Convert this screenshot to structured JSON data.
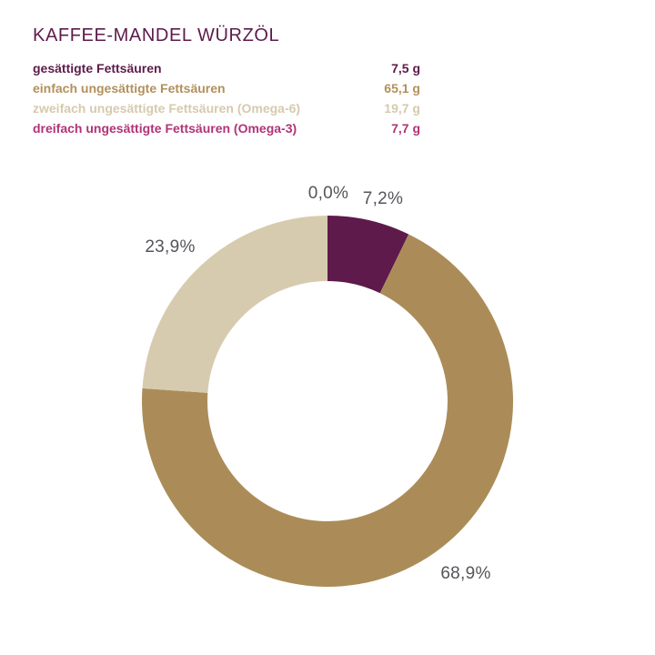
{
  "page": {
    "background": "#ffffff"
  },
  "header": {
    "title": "KAFFEE-MANDEL WÜRZÖL",
    "title_color": "#5d1b4b"
  },
  "legend": {
    "rows": [
      {
        "label": "gesättigte Fettsäuren",
        "value": "7,5 g",
        "color": "#5d1b4b"
      },
      {
        "label": "einfach ungesättigte Fettsäuren",
        "value": "65,1 g",
        "color": "#b2905c"
      },
      {
        "label": "zweifach ungesättigte Fettsäuren (Omega-6)",
        "value": "19,7 g",
        "color": "#d6caad"
      },
      {
        "label": "dreifach ungesättigte Fettsäuren (Omega-3)",
        "value": "7,7 g",
        "color": "#b13377"
      }
    ]
  },
  "chart_data": {
    "type": "pie",
    "variant": "donut",
    "title": "KAFFEE-MANDEL WÜRZÖL",
    "unit": "%",
    "slices": [
      {
        "name": "gesättigte Fettsäuren",
        "percent": 7.2,
        "label": "7,2%",
        "color": "#5e1a4a",
        "label_pos": [
          421,
          224
        ]
      },
      {
        "name": "einfach ungesättigte Fettsäuren",
        "percent": 68.9,
        "label": "68,9%",
        "color": "#ab8c58",
        "label_pos": [
          512,
          636
        ]
      },
      {
        "name": "zweifach ungesättigte Fettsäuren (Omega-6)",
        "percent": 23.9,
        "label": "23,9%",
        "color": "#d6cbae",
        "label_pos": [
          187,
          277
        ]
      },
      {
        "name": "dreifach ungesättigte Fettsäuren (Omega-3)",
        "percent": 0.0,
        "label": "0,0%",
        "color": "#b13377",
        "label_pos": [
          361,
          218
        ]
      }
    ],
    "layout": {
      "center": [
        360,
        441
      ],
      "outer_radius": 204,
      "inner_radius": 132,
      "start_angle_deg": 0,
      "direction": "clockwise",
      "label_color": "#54555a",
      "legend_position": "top-left",
      "grid": false
    }
  }
}
